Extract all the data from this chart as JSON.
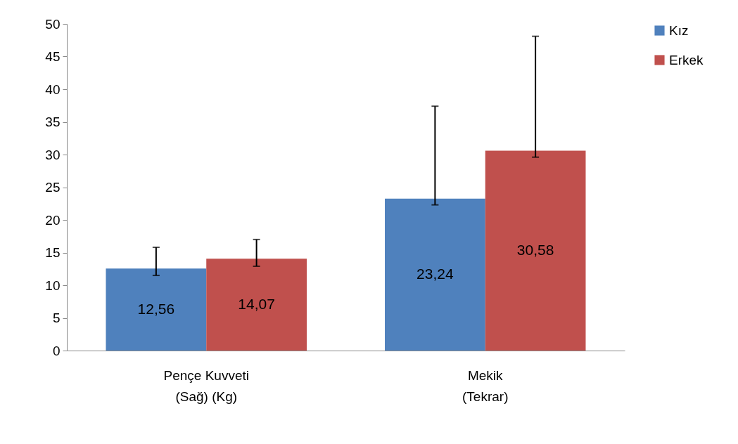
{
  "chart_data": {
    "type": "bar",
    "categories": [
      "Pençe Kuvveti\n(Sağ) (Kg)",
      "Mekik\n(Tekrar)"
    ],
    "series": [
      {
        "name": "Kız",
        "color": "#4f81bd",
        "values": [
          12.56,
          23.24
        ],
        "errors": [
          [
            11.5,
            15.8
          ],
          [
            22.3,
            37.4
          ]
        ],
        "value_labels": [
          "12,56",
          "23,24"
        ]
      },
      {
        "name": "Erkek",
        "color": "#c0504d",
        "values": [
          14.07,
          30.58
        ],
        "errors": [
          [
            12.9,
            17.0
          ],
          [
            29.6,
            48.1
          ]
        ],
        "value_labels": [
          "14,07",
          "30,58"
        ]
      }
    ],
    "ylim": [
      0,
      50
    ],
    "yticks": [
      0,
      5,
      10,
      15,
      20,
      25,
      30,
      35,
      40,
      45,
      50
    ],
    "grid": false,
    "legend": "right"
  }
}
